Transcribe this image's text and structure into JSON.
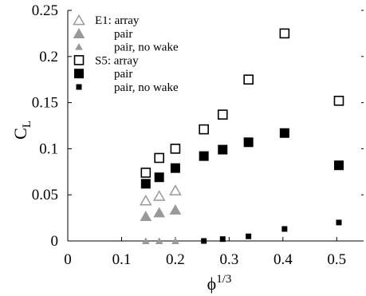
{
  "chart_data": {
    "type": "scatter",
    "xlabel": "ϕ",
    "xlabel_sup": "1/3",
    "ylabel": "C",
    "ylabel_sub": "L",
    "xlim": [
      0,
      0.55
    ],
    "ylim": [
      0,
      0.25
    ],
    "xticks": [
      0,
      0.1,
      0.2,
      0.3,
      0.4,
      0.5
    ],
    "xtick_labels": [
      "0",
      "0.1",
      "0.2",
      "0.3",
      "0.4",
      "0.5"
    ],
    "yticks": [
      0,
      0.05,
      0.1,
      0.15,
      0.2,
      0.25
    ],
    "ytick_labels": [
      "0",
      "0.05",
      "0.1",
      "0.15",
      "0.2",
      "0.25"
    ],
    "grid": false,
    "legend_position": "top-left",
    "series": [
      {
        "name": "E1: array",
        "marker": "triangle-open",
        "color": "#999999",
        "size": "large",
        "x": [
          0.145,
          0.17,
          0.2
        ],
        "y": [
          0.044,
          0.049,
          0.055
        ]
      },
      {
        "name": "pair",
        "marker": "triangle-filled",
        "color": "#999999",
        "size": "large",
        "x": [
          0.145,
          0.17,
          0.2
        ],
        "y": [
          0.027,
          0.031,
          0.034
        ]
      },
      {
        "name": "pair, no wake",
        "marker": "triangle-filled",
        "color": "#999999",
        "size": "small",
        "x": [
          0.145,
          0.17,
          0.2
        ],
        "y": [
          0.0,
          0.0,
          0.0
        ]
      },
      {
        "name": "S5: array",
        "marker": "square-open",
        "color": "#000000",
        "size": "large",
        "x": [
          0.145,
          0.17,
          0.2,
          0.253,
          0.288,
          0.336,
          0.403,
          0.504
        ],
        "y": [
          0.074,
          0.09,
          0.1,
          0.121,
          0.137,
          0.175,
          0.225,
          0.152
        ]
      },
      {
        "name": "pair",
        "marker": "square-filled",
        "color": "#000000",
        "size": "large",
        "x": [
          0.145,
          0.17,
          0.2,
          0.253,
          0.288,
          0.336,
          0.403,
          0.504
        ],
        "y": [
          0.062,
          0.069,
          0.079,
          0.092,
          0.099,
          0.107,
          0.117,
          0.082
        ]
      },
      {
        "name": "pair, no wake",
        "marker": "square-filled",
        "color": "#000000",
        "size": "small",
        "x": [
          0.253,
          0.288,
          0.336,
          0.403,
          0.504
        ],
        "y": [
          0.0,
          0.002,
          0.005,
          0.013,
          0.02
        ]
      }
    ]
  }
}
